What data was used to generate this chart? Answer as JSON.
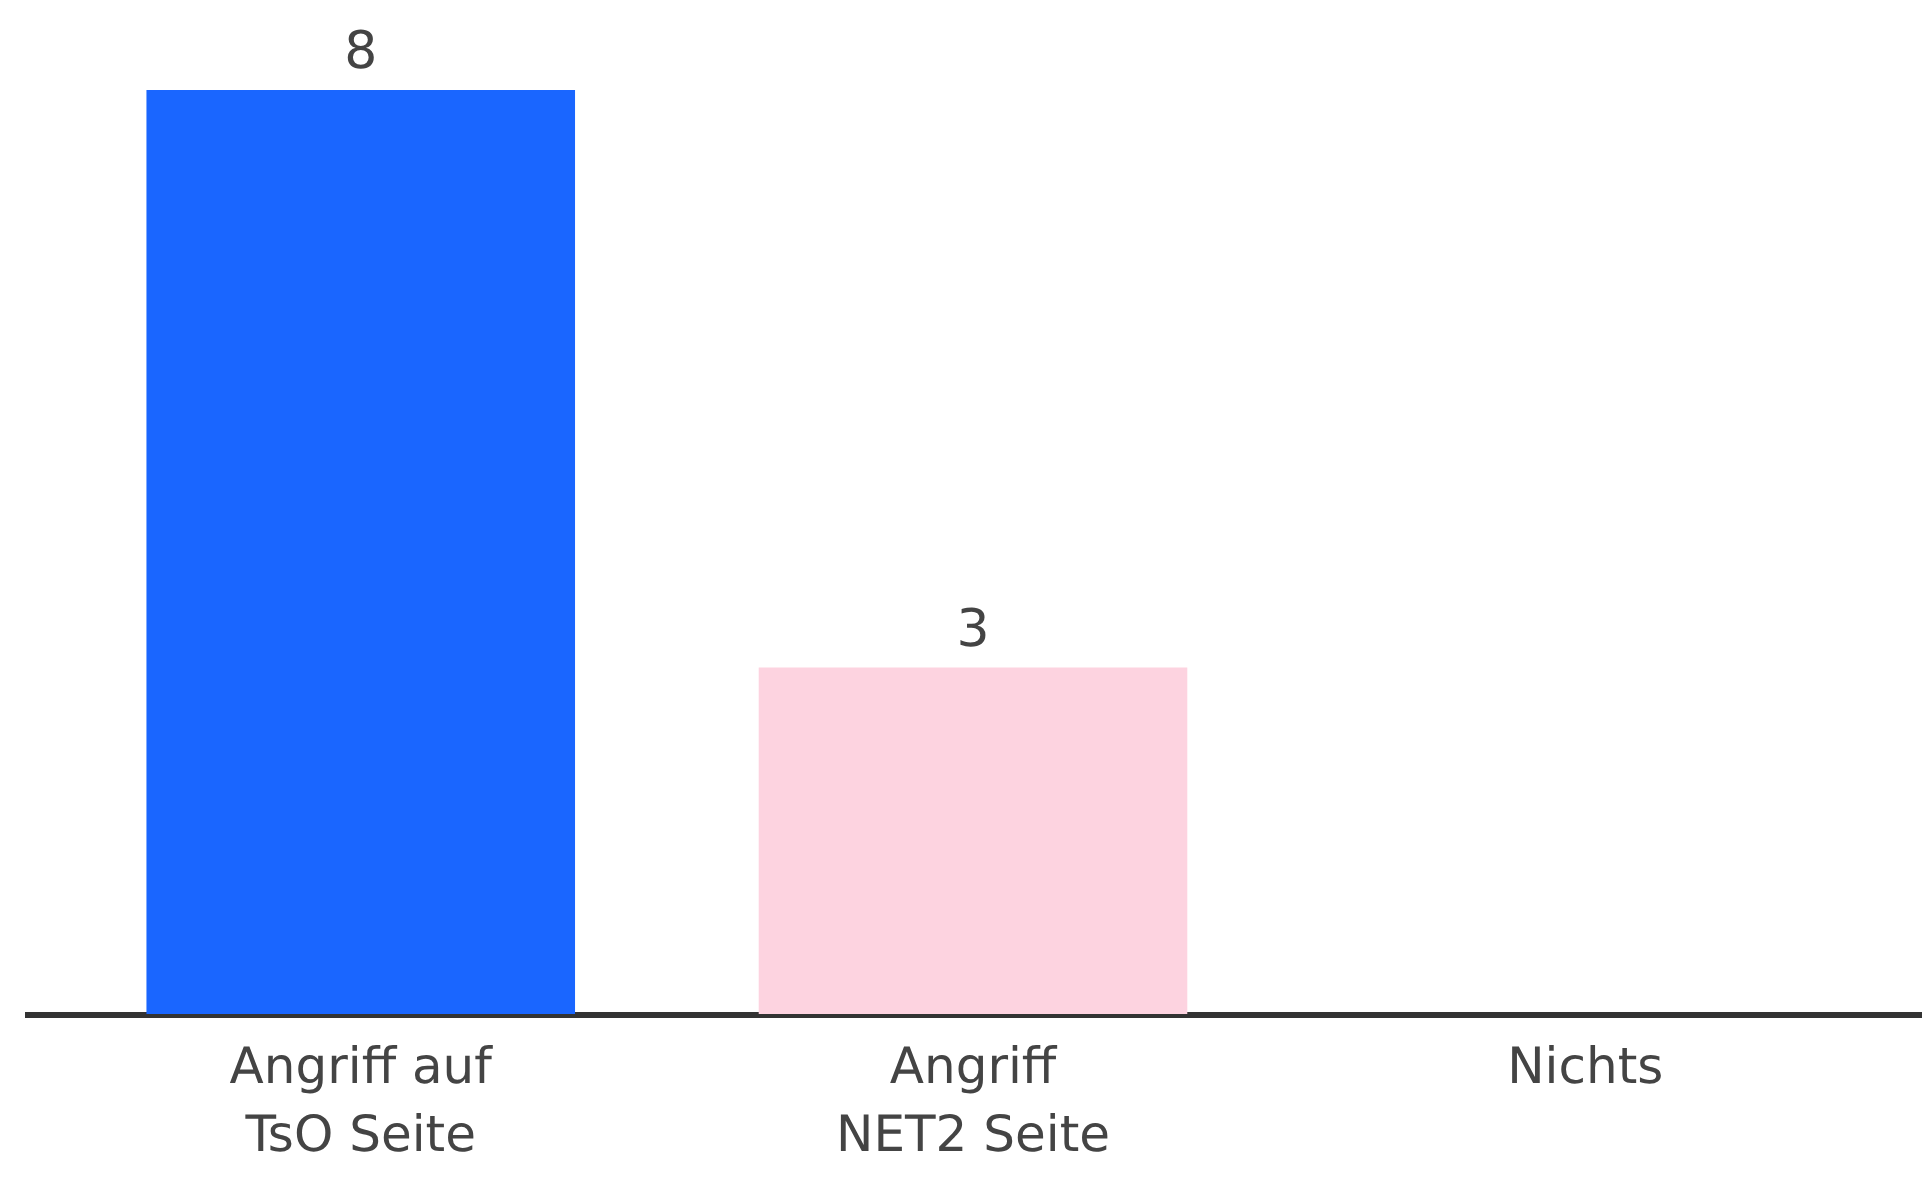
{
  "chart_data": {
    "type": "bar",
    "categories": [
      "Angriff auf\nTsO Seite",
      "Angriff\nNET2 Seite",
      "Nichts"
    ],
    "values": [
      8,
      3,
      0
    ],
    "colors": [
      "#1a66ff",
      "#fdd3e0",
      "#ffffff"
    ],
    "value_labels": [
      "8",
      "3",
      null
    ],
    "grid": false,
    "legend": false
  }
}
